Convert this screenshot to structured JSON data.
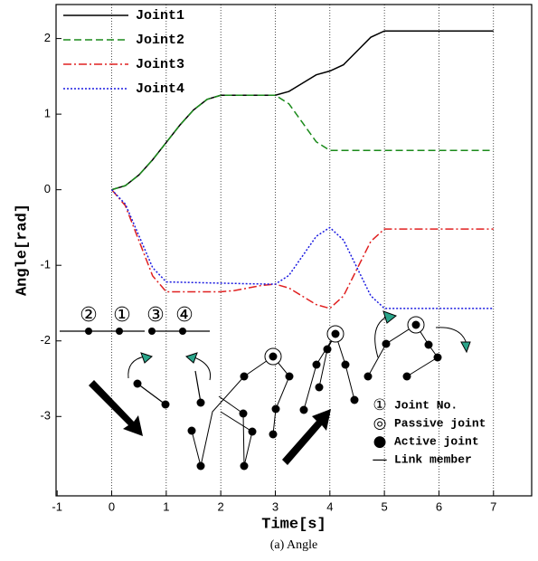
{
  "chart_data": {
    "type": "line",
    "xlabel": "Time[s]",
    "ylabel": "Angle[rad]",
    "caption": "(a) Angle",
    "x": [
      0,
      0.25,
      0.5,
      0.75,
      1,
      1.25,
      1.5,
      1.75,
      2,
      2.25,
      2.5,
      2.75,
      3,
      3.25,
      3.5,
      3.75,
      4,
      4.25,
      4.5,
      4.75,
      5,
      5.25,
      5.5,
      5.75,
      6,
      6.25,
      6.5,
      6.75,
      7
    ],
    "series": [
      {
        "name": "Joint1",
        "color": "#000000",
        "linestyle": "solid",
        "values": [
          0,
          0.054,
          0.195,
          0.396,
          0.625,
          0.855,
          1.055,
          1.196,
          1.25,
          1.25,
          1.25,
          1.25,
          1.25,
          1.3,
          1.41,
          1.52,
          1.57,
          1.653,
          1.835,
          2.017,
          2.1,
          2.1,
          2.1,
          2.1,
          2.1,
          2.1,
          2.1,
          2.1,
          2.1
        ]
      },
      {
        "name": "Joint2",
        "color": "#1a8a1a",
        "linestyle": "dashed",
        "values": [
          0,
          0.054,
          0.195,
          0.396,
          0.625,
          0.855,
          1.055,
          1.196,
          1.25,
          1.25,
          1.25,
          1.25,
          1.25,
          1.136,
          0.885,
          0.634,
          0.52,
          0.52,
          0.52,
          0.52,
          0.52,
          0.52,
          0.52,
          0.52,
          0.52,
          0.52,
          0.52,
          0.52,
          0.52
        ]
      },
      {
        "name": "Joint3",
        "color": "#e02020",
        "linestyle": "dashdot",
        "values": [
          0,
          -0.211,
          -0.675,
          -1.139,
          -1.35,
          -1.35,
          -1.35,
          -1.35,
          -1.35,
          -1.334,
          -1.3,
          -1.266,
          -1.25,
          -1.3,
          -1.41,
          -1.52,
          -1.57,
          -1.406,
          -1.045,
          -0.684,
          -0.52,
          -0.52,
          -0.52,
          -0.52,
          -0.52,
          -0.52,
          -0.52,
          -0.52,
          -0.52
        ]
      },
      {
        "name": "Joint4",
        "color": "#1a1ae0",
        "linestyle": "dotted",
        "values": [
          0,
          -0.19,
          -0.61,
          -1.03,
          -1.22,
          -1.224,
          -1.228,
          -1.232,
          -1.236,
          -1.24,
          -1.244,
          -1.247,
          -1.25,
          -1.133,
          -0.875,
          -0.617,
          -0.5,
          -0.667,
          -1.035,
          -1.403,
          -1.57,
          -1.57,
          -1.57,
          -1.57,
          -1.57,
          -1.57,
          -1.57,
          -1.57,
          -1.57
        ]
      }
    ],
    "xlim": [
      -1.02,
      7.7
    ],
    "xticks": [
      -1,
      0,
      1,
      2,
      3,
      4,
      5,
      6,
      7
    ],
    "ylim": [
      -4.05,
      2.45
    ],
    "yticks": [
      2,
      1,
      0,
      -1,
      -2,
      -3
    ],
    "grid": true,
    "legend": "upper left",
    "joint_numbers": [
      "②",
      "①",
      "③",
      "④"
    ],
    "notes": [
      {
        "symbol": "①",
        "text": "Joint No."
      },
      {
        "symbol": "◎",
        "text": "Passive joint"
      },
      {
        "symbol": "●",
        "text": "Active joint"
      },
      {
        "symbol": "—",
        "text": "Link member"
      }
    ]
  }
}
